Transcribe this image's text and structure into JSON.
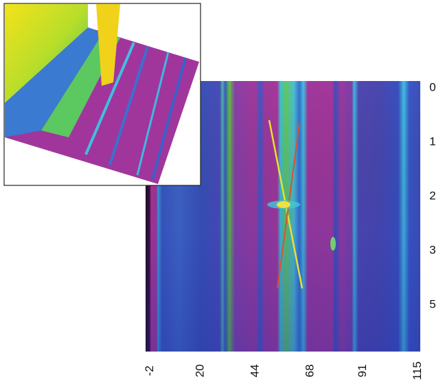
{
  "chart_data": {
    "type": "heatmap",
    "xlim": [
      -4,
      116
    ],
    "xticks": [
      -2,
      20,
      44,
      68,
      91,
      115
    ],
    "y_categories": [
      "0",
      "1",
      "2",
      "3",
      "5"
    ]
  }
}
